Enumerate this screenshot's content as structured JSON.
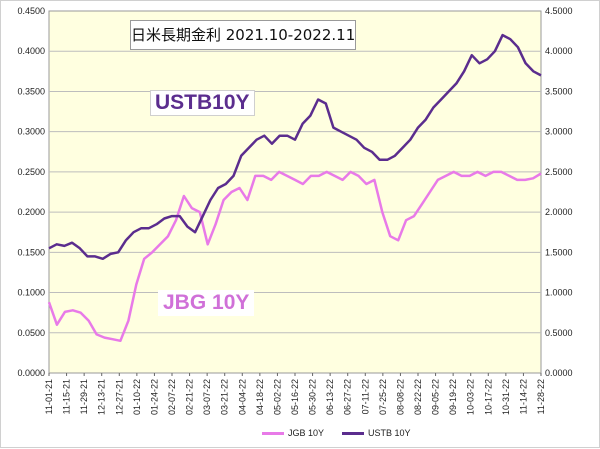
{
  "title": "日米長期金利 2021.10-2022.11",
  "annotations": {
    "ustb": "USTB10Y",
    "jbg": "JBG 10Y"
  },
  "colors": {
    "jgb": "#e87ae8",
    "ustb": "#5b2d8e",
    "plot_bg": "#ffffe0",
    "grid": "#bdbdbd"
  },
  "chart_data": {
    "type": "line",
    "x_ticks": [
      "11-01-21",
      "11-15-21",
      "11-29-21",
      "12-13-21",
      "12-27-21",
      "01-10-22",
      "01-24-22",
      "02-07-22",
      "02-21-22",
      "03-07-22",
      "03-21-22",
      "04-04-22",
      "04-18-22",
      "05-02-22",
      "05-16-22",
      "05-30-22",
      "06-13-22",
      "06-27-22",
      "07-11-22",
      "07-25-22",
      "08-08-22",
      "08-22-22",
      "09-05-22",
      "09-19-22",
      "10-03-22",
      "10-17-22",
      "10-31-22",
      "11-14-22",
      "11-28-22"
    ],
    "y_left_ticks": [
      "0.0000",
      "0.0500",
      "0.1000",
      "0.1500",
      "0.2000",
      "0.2500",
      "0.3000",
      "0.3500",
      "0.4000",
      "0.4500"
    ],
    "y_right_ticks": [
      "0.0000",
      "0.5000",
      "1.0000",
      "1.5000",
      "2.0000",
      "2.5000",
      "3.0000",
      "3.5000",
      "4.0000",
      "4.5000"
    ],
    "y_left_lim": [
      0,
      0.45
    ],
    "y_right_lim": [
      0,
      4.5
    ],
    "grid": true,
    "legend_position": "bottom",
    "series": [
      {
        "name": "JGB 10Y",
        "axis": "left",
        "values": [
          0.088,
          0.06,
          0.076,
          0.078,
          0.075,
          0.065,
          0.048,
          0.044,
          0.042,
          0.04,
          0.065,
          0.11,
          0.142,
          0.15,
          0.16,
          0.17,
          0.19,
          0.22,
          0.205,
          0.2,
          0.16,
          0.185,
          0.215,
          0.225,
          0.23,
          0.215,
          0.245,
          0.245,
          0.24,
          0.25,
          0.245,
          0.24,
          0.235,
          0.245,
          0.245,
          0.25,
          0.245,
          0.24,
          0.25,
          0.245,
          0.235,
          0.24,
          0.2,
          0.17,
          0.165,
          0.19,
          0.195,
          0.21,
          0.225,
          0.24,
          0.245,
          0.25,
          0.245,
          0.245,
          0.25,
          0.245,
          0.25,
          0.25,
          0.245,
          0.24,
          0.24,
          0.242,
          0.248
        ],
        "note": ""
      },
      {
        "name": "USTB 10Y",
        "axis": "right",
        "values": [
          1.55,
          1.6,
          1.58,
          1.62,
          1.55,
          1.45,
          1.45,
          1.42,
          1.48,
          1.5,
          1.65,
          1.75,
          1.8,
          1.8,
          1.85,
          1.92,
          1.95,
          1.95,
          1.82,
          1.75,
          1.95,
          2.15,
          2.3,
          2.35,
          2.45,
          2.7,
          2.8,
          2.9,
          2.95,
          2.85,
          2.95,
          2.95,
          2.9,
          3.1,
          3.2,
          3.4,
          3.35,
          3.05,
          3.0,
          2.95,
          2.9,
          2.8,
          2.75,
          2.65,
          2.65,
          2.7,
          2.8,
          2.9,
          3.05,
          3.15,
          3.3,
          3.4,
          3.5,
          3.6,
          3.75,
          3.95,
          3.85,
          3.9,
          4.0,
          4.2,
          4.15,
          4.05,
          3.85,
          3.75,
          3.7
        ]
      }
    ]
  }
}
